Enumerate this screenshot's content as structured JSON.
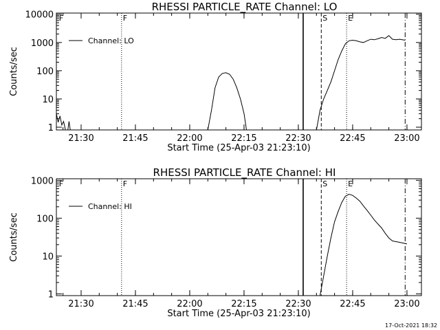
{
  "chart_data": [
    {
      "type": "line",
      "title": "RHESSI PARTICLE_RATE Channel: LO",
      "xlabel": "Start Time (25-Apr-03 21:23:10)",
      "ylabel": "Counts/sec",
      "y_scale": "log",
      "ylim": [
        0.8,
        11000
      ],
      "xlim": [
        "21:23:10",
        "23:04:00"
      ],
      "x_ticks": [
        "21:30",
        "21:45",
        "22:00",
        "22:15",
        "22:30",
        "22:45",
        "23:00"
      ],
      "y_ticks": [
        "1",
        "10",
        "100",
        "1000",
        "10000"
      ],
      "legend": "Channel: LO",
      "legend_position": "top-left",
      "markers": [
        {
          "label": "F",
          "time": "21:23:30",
          "style": "label"
        },
        {
          "label": "F",
          "time": "21:41:10",
          "style": "dotted"
        },
        {
          "label": "",
          "time": "22:31:20",
          "style": "solid"
        },
        {
          "label": "S",
          "time": "22:36:20",
          "style": "dashed"
        },
        {
          "label": "E",
          "time": "22:43:20",
          "style": "dotted"
        },
        {
          "label": "",
          "time": "22:59:30",
          "style": "dashdot"
        }
      ],
      "series": [
        {
          "segments": [
            [
              [
                "21:23:10",
                3.0
              ],
              [
                "21:23:40",
                1.5
              ],
              [
                "21:24:10",
                2.5
              ],
              [
                "21:24:40",
                1.2
              ],
              [
                "21:25:10",
                1.6
              ],
              [
                "21:25:40",
                0.8
              ]
            ],
            [
              [
                "21:26:20",
                0.8
              ],
              [
                "21:26:40",
                1.6
              ],
              [
                "21:27:00",
                0.8
              ]
            ],
            [
              [
                "22:05:00",
                0.8
              ],
              [
                "22:06:00",
                4.0
              ],
              [
                "22:07:00",
                25.0
              ],
              [
                "22:08:00",
                60.0
              ],
              [
                "22:09:00",
                80.0
              ],
              [
                "22:10:00",
                85.0
              ],
              [
                "22:11:00",
                75.0
              ],
              [
                "22:12:00",
                50.0
              ],
              [
                "22:13:00",
                25.0
              ],
              [
                "22:14:00",
                10.0
              ],
              [
                "22:15:00",
                3.0
              ],
              [
                "22:15:40",
                0.8
              ]
            ],
            [
              [
                "22:35:00",
                0.8
              ],
              [
                "22:36:00",
                4.0
              ],
              [
                "22:37:00",
                10.0
              ],
              [
                "22:38:00",
                20.0
              ],
              [
                "22:39:00",
                40.0
              ],
              [
                "22:40:00",
                100.0
              ],
              [
                "22:41:00",
                250.0
              ],
              [
                "22:42:00",
                500.0
              ],
              [
                "22:43:00",
                900.0
              ],
              [
                "22:44:00",
                1150.0
              ],
              [
                "22:45:00",
                1200.0
              ],
              [
                "22:46:00",
                1150.0
              ],
              [
                "22:47:00",
                1050.0
              ],
              [
                "22:48:00",
                1000.0
              ],
              [
                "22:49:00",
                1150.0
              ],
              [
                "22:50:00",
                1300.0
              ],
              [
                "22:51:00",
                1250.0
              ],
              [
                "22:52:00",
                1350.0
              ],
              [
                "22:53:00",
                1500.0
              ],
              [
                "22:54:00",
                1400.0
              ],
              [
                "22:55:00",
                1750.0
              ],
              [
                "22:56:00",
                1300.0
              ],
              [
                "22:57:00",
                1250.0
              ],
              [
                "22:58:00",
                1300.0
              ],
              [
                "22:59:30",
                1200.0
              ]
            ]
          ]
        }
      ]
    },
    {
      "type": "line",
      "title": "RHESSI PARTICLE_RATE Channel: HI",
      "xlabel": "Start Time (25-Apr-03 21:23:10)",
      "ylabel": "Counts/sec",
      "y_scale": "log",
      "ylim": [
        0.9,
        1100
      ],
      "xlim": [
        "21:23:10",
        "23:04:00"
      ],
      "x_ticks": [
        "21:30",
        "21:45",
        "22:00",
        "22:15",
        "22:30",
        "22:45",
        "23:00"
      ],
      "y_ticks": [
        "1",
        "10",
        "100",
        "1000"
      ],
      "legend": "Channel: HI",
      "legend_position": "top-left",
      "markers": [
        {
          "label": "F",
          "time": "21:23:30",
          "style": "label"
        },
        {
          "label": "F",
          "time": "21:41:10",
          "style": "dotted"
        },
        {
          "label": "",
          "time": "22:31:20",
          "style": "solid"
        },
        {
          "label": "S",
          "time": "22:36:20",
          "style": "dashed"
        },
        {
          "label": "E",
          "time": "22:43:20",
          "style": "dotted"
        },
        {
          "label": "",
          "time": "22:59:30",
          "style": "dashdot"
        }
      ],
      "series": [
        {
          "segments": [
            [
              [
                "22:36:00",
                0.9
              ],
              [
                "22:37:00",
                3.0
              ],
              [
                "22:38:00",
                10.0
              ],
              [
                "22:39:00",
                30.0
              ],
              [
                "22:40:00",
                80.0
              ],
              [
                "22:41:00",
                150.0
              ],
              [
                "22:42:00",
                260.0
              ],
              [
                "22:43:00",
                380.0
              ],
              [
                "22:44:00",
                430.0
              ],
              [
                "22:45:00",
                400.0
              ],
              [
                "22:46:00",
                340.0
              ],
              [
                "22:47:00",
                280.0
              ],
              [
                "22:48:00",
                210.0
              ],
              [
                "22:49:00",
                160.0
              ],
              [
                "22:50:00",
                120.0
              ],
              [
                "22:51:00",
                90.0
              ],
              [
                "22:52:00",
                70.0
              ],
              [
                "22:53:00",
                55.0
              ],
              [
                "22:54:00",
                40.0
              ],
              [
                "22:55:00",
                30.0
              ],
              [
                "22:56:00",
                25.0
              ],
              [
                "22:57:00",
                24.0
              ],
              [
                "22:58:00",
                23.0
              ],
              [
                "22:59:00",
                22.0
              ],
              [
                "23:00:00",
                21.0
              ]
            ]
          ]
        }
      ]
    }
  ],
  "footer": {
    "timestamp": "17-Oct-2021 18:32"
  }
}
